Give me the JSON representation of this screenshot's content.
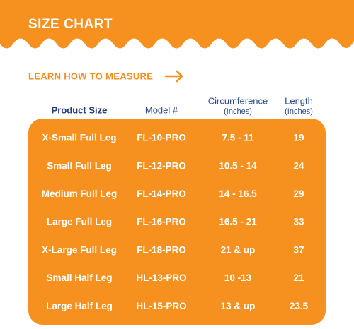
{
  "header": {
    "title": "SIZE CHART"
  },
  "link": {
    "text": "LEARN HOW TO MEASURE"
  },
  "table": {
    "headers": [
      {
        "label": "Product Size"
      },
      {
        "label": "Model #"
      },
      {
        "label": "Circumference",
        "unit": "(Inches)"
      },
      {
        "label": "Length",
        "unit": "(Inches)"
      }
    ],
    "rows": [
      [
        "X-Small Full Leg",
        "FL-10-PRO",
        "7.5 - 11",
        "19"
      ],
      [
        "Small Full Leg",
        "FL-12-PRO",
        "10.5 - 14",
        "24"
      ],
      [
        "Medium Full Leg",
        "FL-14-PRO",
        "14 - 16.5",
        "29"
      ],
      [
        "Large Full Leg",
        "FL-16-PRO",
        "16.5 - 21",
        "33"
      ],
      [
        "X-Large Full Leg",
        "FL-18-PRO",
        "21 & up",
        "37"
      ],
      [
        "Small Half Leg",
        "HL-13-PRO",
        "10 -13",
        "21"
      ],
      [
        "Large Half Leg",
        "HL-15-PRO",
        "13 & up",
        "23.5"
      ]
    ]
  }
}
